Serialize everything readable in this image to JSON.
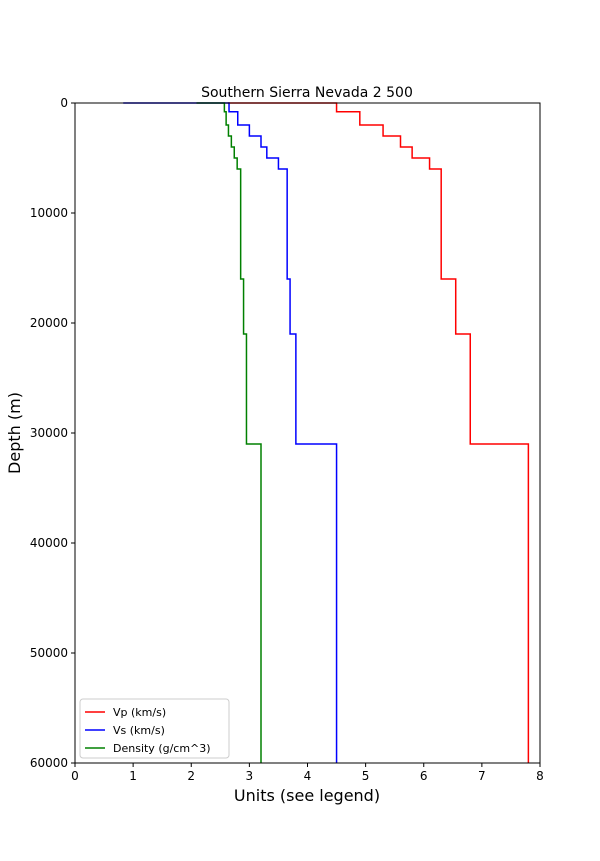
{
  "chart_data": {
    "type": "line",
    "title": "Southern Sierra Nevada 2 500",
    "xlabel": "Units (see legend)",
    "ylabel": "Depth (m)",
    "xlim": [
      0,
      8
    ],
    "ylim": [
      60000,
      0
    ],
    "y_inverted": true,
    "grid": false,
    "legend_position": "lower-left",
    "x_ticks": [
      "0",
      "1",
      "2",
      "3",
      "4",
      "5",
      "6",
      "7",
      "8"
    ],
    "y_ticks": [
      "0",
      "10000",
      "20000",
      "30000",
      "40000",
      "50000",
      "60000"
    ],
    "series": [
      {
        "name": "Vp (km/s)",
        "color": "#ff0000",
        "surface_value": 2.63,
        "layers": [
          {
            "top": 0,
            "bottom": 800,
            "value": 4.5
          },
          {
            "top": 800,
            "bottom": 2000,
            "value": 4.9
          },
          {
            "top": 2000,
            "bottom": 3000,
            "value": 5.3
          },
          {
            "top": 3000,
            "bottom": 4000,
            "value": 5.6
          },
          {
            "top": 4000,
            "bottom": 5000,
            "value": 5.8
          },
          {
            "top": 5000,
            "bottom": 6000,
            "value": 6.1
          },
          {
            "top": 6000,
            "bottom": 16000,
            "value": 6.3
          },
          {
            "top": 16000,
            "bottom": 21000,
            "value": 6.55
          },
          {
            "top": 21000,
            "bottom": 31000,
            "value": 6.8
          },
          {
            "top": 31000,
            "bottom": 60000,
            "value": 7.8
          }
        ]
      },
      {
        "name": "Vs (km/s)",
        "color": "#0000ff",
        "surface_value": 0.83,
        "layers": [
          {
            "top": 0,
            "bottom": 800,
            "value": 2.65
          },
          {
            "top": 800,
            "bottom": 2000,
            "value": 2.8
          },
          {
            "top": 2000,
            "bottom": 3000,
            "value": 3.0
          },
          {
            "top": 3000,
            "bottom": 4000,
            "value": 3.2
          },
          {
            "top": 4000,
            "bottom": 5000,
            "value": 3.3
          },
          {
            "top": 5000,
            "bottom": 6000,
            "value": 3.5
          },
          {
            "top": 6000,
            "bottom": 16000,
            "value": 3.65
          },
          {
            "top": 16000,
            "bottom": 21000,
            "value": 3.7
          },
          {
            "top": 21000,
            "bottom": 31000,
            "value": 3.8
          },
          {
            "top": 31000,
            "bottom": 60000,
            "value": 4.5
          }
        ]
      },
      {
        "name": "Density (g/cm^3)",
        "color": "#008000",
        "surface_value": 2.09,
        "layers": [
          {
            "top": 0,
            "bottom": 800,
            "value": 2.57
          },
          {
            "top": 800,
            "bottom": 2000,
            "value": 2.6
          },
          {
            "top": 2000,
            "bottom": 3000,
            "value": 2.64
          },
          {
            "top": 3000,
            "bottom": 4000,
            "value": 2.69
          },
          {
            "top": 4000,
            "bottom": 5000,
            "value": 2.74
          },
          {
            "top": 5000,
            "bottom": 6000,
            "value": 2.79
          },
          {
            "top": 6000,
            "bottom": 16000,
            "value": 2.85
          },
          {
            "top": 16000,
            "bottom": 21000,
            "value": 2.9
          },
          {
            "top": 21000,
            "bottom": 31000,
            "value": 2.95
          },
          {
            "top": 31000,
            "bottom": 60000,
            "value": 3.2
          }
        ]
      }
    ]
  }
}
